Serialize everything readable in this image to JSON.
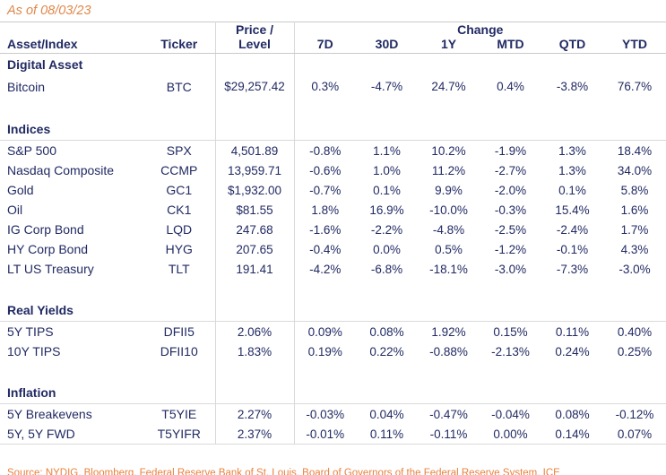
{
  "page": {
    "as_of": "As of 08/03/23",
    "source": "Source: NYDIG, Bloomberg, Federal Reserve Bank of St. Louis, Board of Governors of the Federal Reserve System, ICE"
  },
  "table_headers": {
    "asset": "Asset/Index",
    "ticker": "Ticker",
    "price_top": "Price /",
    "price_bottom": "Level",
    "change_group": "Change",
    "periods": [
      "7D",
      "30D",
      "1Y",
      "MTD",
      "QTD",
      "YTD"
    ]
  },
  "chart_data": {
    "type": "table",
    "title": "As of 08/03/23",
    "columns": [
      "Asset/Index",
      "Ticker",
      "Price / Level",
      "7D",
      "30D",
      "1Y",
      "MTD",
      "QTD",
      "YTD"
    ],
    "sections": [
      {
        "label": "Digital Asset",
        "rows": [
          [
            "Bitcoin",
            "BTC",
            "$29,257.42",
            "0.3%",
            "-4.7%",
            "24.7%",
            "0.4%",
            "-3.8%",
            "76.7%"
          ]
        ]
      },
      {
        "label": "Indices",
        "rows": [
          [
            "S&P 500",
            "SPX",
            "4,501.89",
            "-0.8%",
            "1.1%",
            "10.2%",
            "-1.9%",
            "1.3%",
            "18.4%"
          ],
          [
            "Nasdaq Composite",
            "CCMP",
            "13,959.71",
            "-0.6%",
            "1.0%",
            "11.2%",
            "-2.7%",
            "1.3%",
            "34.0%"
          ],
          [
            "Gold",
            "GC1",
            "$1,932.00",
            "-0.7%",
            "0.1%",
            "9.9%",
            "-2.0%",
            "0.1%",
            "5.8%"
          ],
          [
            "Oil",
            "CK1",
            "$81.55",
            "1.8%",
            "16.9%",
            "-10.0%",
            "-0.3%",
            "15.4%",
            "1.6%"
          ],
          [
            "IG Corp Bond",
            "LQD",
            "247.68",
            "-1.6%",
            "-2.2%",
            "-4.8%",
            "-2.5%",
            "-2.4%",
            "1.7%"
          ],
          [
            "HY Corp Bond",
            "HYG",
            "207.65",
            "-0.4%",
            "0.0%",
            "0.5%",
            "-1.2%",
            "-0.1%",
            "4.3%"
          ],
          [
            "LT US Treasury",
            "TLT",
            "191.41",
            "-4.2%",
            "-6.8%",
            "-18.1%",
            "-3.0%",
            "-7.3%",
            "-3.0%"
          ]
        ]
      },
      {
        "label": "Real Yields",
        "rows": [
          [
            "5Y TIPS",
            "DFII5",
            "2.06%",
            "0.09%",
            "0.08%",
            "1.92%",
            "0.15%",
            "0.11%",
            "0.40%"
          ],
          [
            "10Y TIPS",
            "DFII10",
            "1.83%",
            "0.19%",
            "0.22%",
            "-0.88%",
            "-2.13%",
            "0.24%",
            "0.25%"
          ]
        ]
      },
      {
        "label": "Inflation",
        "rows": [
          [
            "5Y Breakevens",
            "T5YIE",
            "2.27%",
            "-0.03%",
            "0.04%",
            "-0.47%",
            "-0.04%",
            "0.08%",
            "-0.12%"
          ],
          [
            "5Y, 5Y FWD",
            "T5YIFR",
            "2.37%",
            "-0.01%",
            "0.11%",
            "-0.11%",
            "0.00%",
            "0.14%",
            "0.07%"
          ]
        ]
      }
    ]
  },
  "colors": {
    "navy": "#212A63",
    "teal": "#4CC3AD",
    "orange_date": "#E0874A",
    "orange_source": "#E8823C",
    "grid": "#D9D9D9"
  }
}
